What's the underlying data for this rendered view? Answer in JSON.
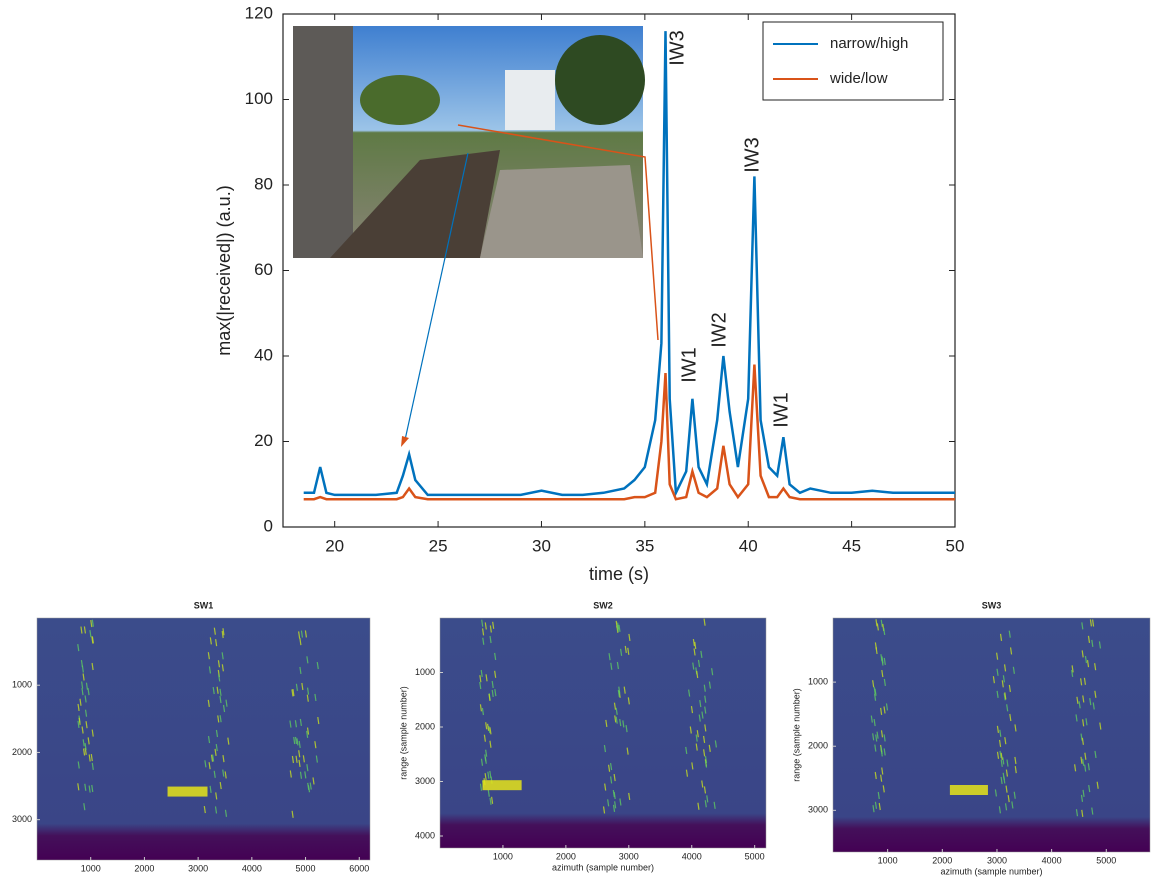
{
  "chart_data": [
    {
      "type": "line",
      "xlabel": "time (s)",
      "ylabel": "max(|received|) (a.u.)",
      "x": [
        18.5,
        19,
        19.3,
        19.6,
        20,
        21,
        22,
        23,
        23.3,
        23.6,
        23.9,
        24.5,
        25,
        26,
        27,
        28,
        29,
        30,
        31,
        32,
        33,
        34,
        34.5,
        35,
        35.5,
        35.8,
        36.0,
        36.2,
        36.5,
        37,
        37.3,
        37.6,
        38,
        38.5,
        38.8,
        39.1,
        39.5,
        40,
        40.3,
        40.6,
        41,
        41.4,
        41.7,
        42,
        42.5,
        43,
        44,
        45,
        46,
        47,
        48,
        49,
        50
      ],
      "series": [
        {
          "name": "narrow/high",
          "color": "#0072bd",
          "values": [
            8,
            8,
            14,
            8,
            7.5,
            7.5,
            7.5,
            8,
            12,
            17,
            11,
            7.5,
            7.5,
            7.5,
            7.5,
            7.5,
            7.5,
            8.5,
            7.5,
            7.5,
            8,
            9,
            11,
            14,
            25,
            43,
            116,
            30,
            8,
            13,
            30,
            14,
            10,
            25,
            40,
            27,
            14,
            30,
            82,
            25,
            14,
            12,
            21,
            10,
            8,
            9,
            8,
            8,
            8.5,
            8,
            8,
            8,
            8
          ]
        },
        {
          "name": "wide/low",
          "color": "#d95319",
          "values": [
            6.5,
            6.5,
            7,
            6.5,
            6.5,
            6.5,
            6.5,
            6.5,
            7,
            9,
            7,
            6.5,
            6.5,
            6.5,
            6.5,
            6.5,
            6.5,
            6.5,
            6.5,
            6.5,
            6.5,
            6.5,
            7,
            7,
            8,
            20,
            36,
            10,
            6.5,
            7,
            13,
            8,
            7,
            9,
            19,
            10,
            7,
            10,
            38,
            12,
            7,
            7,
            9,
            7,
            6.5,
            6.5,
            6.5,
            6.5,
            6.5,
            6.5,
            6.5,
            6.5,
            6.5
          ]
        }
      ],
      "annotations": [
        "IW3",
        "IW1",
        "IW2",
        "IW3",
        "IW1"
      ],
      "xlim": [
        17.5,
        50
      ],
      "ylim": [
        0,
        120
      ],
      "xticks": [
        20,
        25,
        30,
        35,
        40,
        45,
        50
      ],
      "yticks": [
        0,
        20,
        40,
        60,
        80,
        100,
        120
      ],
      "legend": "upper right"
    },
    {
      "type": "heatmap",
      "title": "SW1",
      "xlim": [
        0,
        6200
      ],
      "ylim": [
        0,
        3600
      ],
      "xticks": [
        1000,
        2000,
        3000,
        4000,
        5000,
        6000
      ],
      "yticks": [
        1000,
        2000,
        3000
      ]
    },
    {
      "type": "heatmap",
      "title": "SW2",
      "xlabel": "azimuth (sample number)",
      "ylabel": "range (sample number)",
      "xlim": [
        0,
        5180
      ],
      "ylim": [
        0,
        4220
      ],
      "xticks": [
        1000,
        2000,
        3000,
        4000,
        5000
      ],
      "yticks": [
        1000,
        2000,
        3000,
        4000
      ]
    },
    {
      "type": "heatmap",
      "title": "SW3",
      "xlabel": "azimuth (sample number)",
      "ylabel": "range (sample number)",
      "xlim": [
        0,
        5800
      ],
      "ylim": [
        0,
        3650
      ],
      "xticks": [
        1000,
        2000,
        3000,
        4000,
        5000
      ],
      "yticks": [
        1000,
        2000,
        3000
      ]
    }
  ]
}
